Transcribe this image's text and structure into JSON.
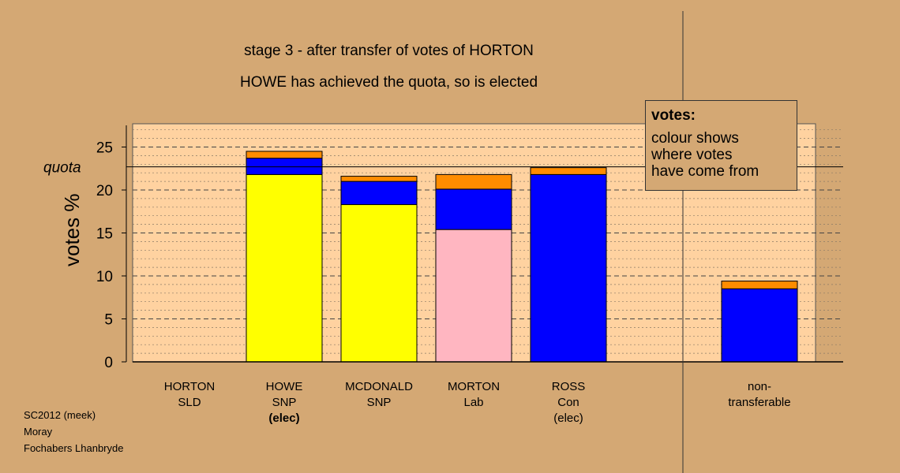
{
  "chart_data": {
    "type": "bar",
    "title": "stage 3 - after transfer of votes of HORTON",
    "subtitle": "HOWE has achieved the quota, so is elected",
    "ylabel": "votes %",
    "ylim": [
      0,
      27.5
    ],
    "yticks": [
      0,
      5,
      10,
      15,
      20,
      25
    ],
    "quota": 22.7,
    "quota_label": "quota",
    "categories": [
      {
        "name": "HORTON",
        "party": "SLD",
        "note": "",
        "note_bold": false
      },
      {
        "name": "HOWE",
        "party": "SNP",
        "note": "(elec)",
        "note_bold": true
      },
      {
        "name": "MCDONALD",
        "party": "SNP",
        "note": "",
        "note_bold": false
      },
      {
        "name": "MORTON",
        "party": "Lab",
        "note": "",
        "note_bold": false
      },
      {
        "name": "ROSS",
        "party": "Con",
        "note": "(elec)",
        "note_bold": false
      },
      {
        "name": "non-",
        "party": "transferable",
        "note": "",
        "note_bold": false
      }
    ],
    "bars": [
      {
        "segments": []
      },
      {
        "segments": [
          {
            "value": 21.8,
            "color": "#ffff00"
          },
          {
            "value": 1.9,
            "color": "#0000ff"
          },
          {
            "value": 0.8,
            "color": "#ff8c00"
          }
        ]
      },
      {
        "segments": [
          {
            "value": 18.3,
            "color": "#ffff00"
          },
          {
            "value": 2.7,
            "color": "#0000ff"
          },
          {
            "value": 0.6,
            "color": "#ff8c00"
          }
        ]
      },
      {
        "segments": [
          {
            "value": 15.4,
            "color": "#ffb6c1"
          },
          {
            "value": 4.7,
            "color": "#0000ff"
          },
          {
            "value": 1.7,
            "color": "#ff8c00"
          }
        ]
      },
      {
        "segments": [
          {
            "value": 21.8,
            "color": "#0000ff"
          },
          {
            "value": 0.8,
            "color": "#ff8c00"
          }
        ]
      },
      {
        "segments": [
          {
            "value": 8.5,
            "color": "#0000ff"
          },
          {
            "value": 0.9,
            "color": "#ff8c00"
          }
        ]
      }
    ],
    "grid": true
  },
  "legend": {
    "heading": "votes:",
    "lines": [
      "colour shows",
      "where votes",
      "have come from"
    ]
  },
  "footer": {
    "lines": [
      "SC2012 (meek)",
      "Moray",
      "Fochabers Lhanbryde"
    ]
  },
  "colors": {
    "background": "#d4a874",
    "plot_area": "#ffd2a0"
  }
}
